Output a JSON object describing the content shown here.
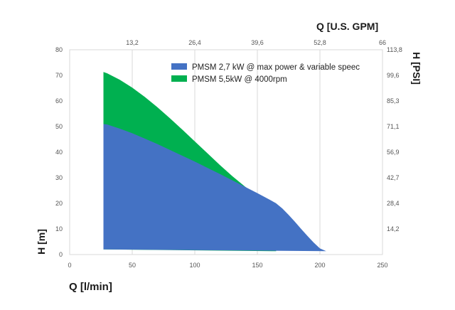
{
  "chart_data": {
    "type": "area",
    "title": "",
    "xlabel": "Q [l/min]",
    "ylabel": "H [m]",
    "x2label": "Q [U.S. GPM]",
    "y2label": "H [PSI]",
    "xlim": [
      0,
      250
    ],
    "ylim": [
      0,
      80
    ],
    "x_ticks": [
      "0",
      "50",
      "100",
      "150",
      "200",
      "250"
    ],
    "y_ticks": [
      "0",
      "10",
      "20",
      "30",
      "40",
      "50",
      "60",
      "70",
      "80"
    ],
    "x2_ticks": [
      "13,2",
      "26,4",
      "39,6",
      "52,8",
      "66"
    ],
    "y2_ticks": [
      "14,2",
      "28,4",
      "42,7",
      "56,9",
      "71,1",
      "85,3",
      "99,6",
      "113,8"
    ],
    "grid": "vertical",
    "legend_position": "top-right",
    "series": [
      {
        "name": "PMSM 2,7 kW @ max power & variable speec",
        "color": "#4472c4",
        "x": [
          27,
          30,
          40,
          50,
          60,
          70,
          80,
          90,
          100,
          110,
          120,
          130,
          140,
          150,
          160,
          165,
          170,
          175,
          180,
          185,
          190,
          195,
          200,
          205
        ],
        "y": [
          51,
          50.8,
          49.2,
          47.4,
          45.3,
          43.2,
          40.9,
          38.6,
          36.3,
          33.9,
          31.5,
          29.0,
          26.5,
          24.0,
          21.4,
          20.0,
          18.0,
          15.5,
          12.8,
          10.0,
          7.3,
          4.7,
          2.4,
          1.3
        ]
      },
      {
        "name": "PMSM 5,5kW @ 4000rpm",
        "color": "#00b050",
        "x": [
          27,
          30,
          40,
          50,
          60,
          70,
          80,
          90,
          100,
          110,
          120,
          130,
          140,
          150,
          160,
          165
        ],
        "y": [
          71.3,
          70.8,
          68.3,
          65.2,
          61.6,
          57.6,
          53.3,
          48.8,
          44.2,
          39.6,
          35.0,
          30.6,
          26.6,
          23.0,
          21.2,
          20.0
        ]
      }
    ]
  }
}
